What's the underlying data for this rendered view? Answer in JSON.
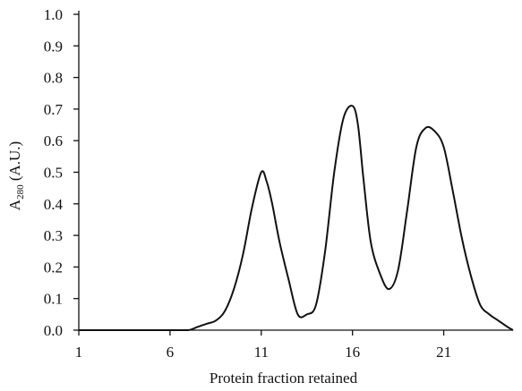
{
  "chart_data": {
    "type": "line",
    "title": "",
    "xlabel": "Protein fraction retained",
    "ylabel_main": "A",
    "ylabel_sub": "280",
    "ylabel_unit": " (A.U.)",
    "xlim": [
      1,
      24.8
    ],
    "ylim": [
      0,
      1.0
    ],
    "x_ticks": [
      1,
      6,
      11,
      16,
      21
    ],
    "x_tick_labels": [
      "1",
      "6",
      "11",
      "16",
      "21"
    ],
    "y_ticks": [
      0,
      0.1,
      0.2,
      0.3,
      0.4,
      0.5,
      0.6,
      0.7,
      0.8,
      0.9,
      1.0
    ],
    "y_tick_labels": [
      "0.0",
      "0.1",
      "0.2",
      "0.3",
      "0.4",
      "0.5",
      "0.6",
      "0.7",
      "0.8",
      "0.9",
      "1.0"
    ],
    "grid": false,
    "legend": "none",
    "line_color": "#111111",
    "series": [
      {
        "x": [
          1,
          6,
          7,
          7.5,
          8,
          8.5,
          9,
          9.5,
          10,
          10.5,
          11,
          11.3,
          11.6,
          12,
          12.5,
          13,
          13.5,
          14,
          14.5,
          15,
          15.5,
          16,
          16.3,
          16.6,
          17,
          17.5,
          18,
          18.5,
          19,
          19.5,
          20,
          20.5,
          21,
          21.5,
          22,
          22.5,
          23,
          23.5,
          24,
          24.5,
          24.8
        ],
        "y": [
          0,
          0,
          0,
          0.01,
          0.02,
          0.03,
          0.06,
          0.13,
          0.24,
          0.39,
          0.5,
          0.47,
          0.4,
          0.28,
          0.16,
          0.05,
          0.05,
          0.08,
          0.25,
          0.5,
          0.67,
          0.71,
          0.65,
          0.48,
          0.28,
          0.18,
          0.13,
          0.19,
          0.38,
          0.58,
          0.64,
          0.63,
          0.58,
          0.44,
          0.29,
          0.17,
          0.08,
          0.05,
          0.03,
          0.01,
          0.0
        ]
      }
    ]
  }
}
